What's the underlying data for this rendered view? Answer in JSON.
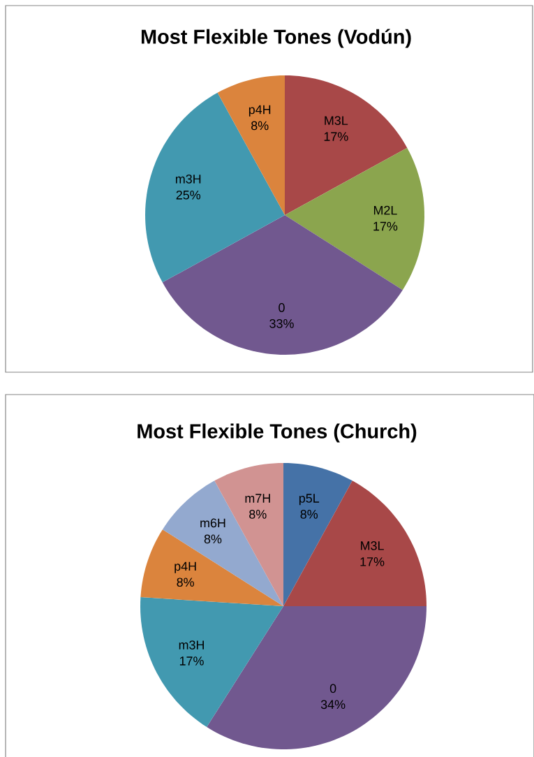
{
  "chart_data": [
    {
      "type": "pie",
      "title": "Most Flexible Tones (Vodún)",
      "categories": [
        "M3L",
        "M2L",
        "0",
        "m3H",
        "p4H"
      ],
      "values": [
        17,
        17,
        33,
        25,
        8
      ],
      "value_labels": [
        "17%",
        "17%",
        "33%",
        "25%",
        "8%"
      ],
      "colors": [
        "#a84848",
        "#8ba54e",
        "#71588f",
        "#4299b0",
        "#db843d"
      ]
    },
    {
      "type": "pie",
      "title": "Most Flexible Tones (Church)",
      "categories": [
        "p5L",
        "M3L",
        "0",
        "m3H",
        "p4H",
        "m6H",
        "m7H"
      ],
      "values": [
        8,
        17,
        34,
        17,
        8,
        8,
        8
      ],
      "value_labels": [
        "8%",
        "17%",
        "34%",
        "17%",
        "8%",
        "8%",
        "8%"
      ],
      "colors": [
        "#4572a7",
        "#a84848",
        "#71588f",
        "#4299b0",
        "#db843d",
        "#93a9cf",
        "#d19392"
      ]
    }
  ]
}
